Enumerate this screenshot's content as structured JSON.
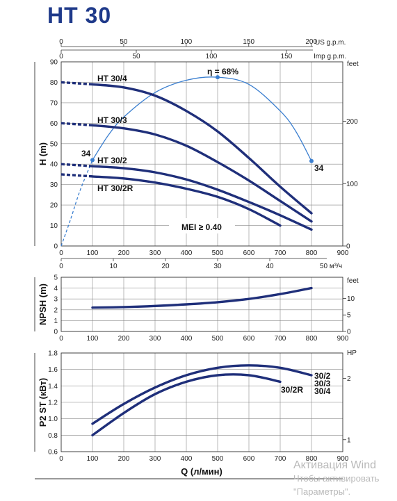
{
  "page": {
    "title": "HT 30",
    "activation": {
      "line1": "Активация Wind",
      "line2": "Чтобы активировать",
      "line3": "\"Параметры\"."
    }
  },
  "colors": {
    "pump_curve": "#1f2f7a",
    "efficiency": "#3b7fd0",
    "title": "#1f3a8a"
  },
  "chart_data": [
    {
      "id": "head",
      "type": "line",
      "ylabel": "H (m)",
      "xlim": [
        0,
        900
      ],
      "ylim": [
        0,
        90
      ],
      "x_ticks": [
        0,
        100,
        200,
        300,
        400,
        500,
        600,
        700,
        800,
        900
      ],
      "y_ticks": [
        0,
        10,
        20,
        30,
        40,
        50,
        60,
        70,
        80,
        90
      ],
      "top_axis_us": {
        "unit": "US g.p.m.",
        "ticks": [
          0,
          50,
          100,
          150,
          200
        ]
      },
      "top_axis_imp": {
        "unit": "Imp g.p.m.",
        "ticks": [
          0,
          50,
          100,
          150
        ]
      },
      "bottom_axis_m3h": {
        "unit": "50 м³/ч",
        "ticks": [
          0,
          10,
          20,
          30,
          40
        ]
      },
      "right_axis": {
        "unit": "feet",
        "ticks": [
          0,
          100,
          200
        ]
      },
      "series": [
        {
          "name": "HT 30/4",
          "x": [
            100,
            200,
            300,
            400,
            500,
            600,
            700,
            800
          ],
          "y": [
            79,
            77.5,
            73.5,
            66,
            56,
            43,
            29,
            16
          ],
          "extrapolated": {
            "x": [
              0,
              100
            ],
            "y": [
              80,
              79
            ]
          }
        },
        {
          "name": "HT 30/3",
          "x": [
            100,
            200,
            300,
            400,
            500,
            600,
            700,
            800
          ],
          "y": [
            59,
            57.5,
            54.5,
            49,
            41,
            32,
            22,
            12
          ],
          "extrapolated": {
            "x": [
              0,
              100
            ],
            "y": [
              60,
              59
            ]
          }
        },
        {
          "name": "HT 30/2",
          "x": [
            100,
            200,
            300,
            400,
            500,
            600,
            700,
            800
          ],
          "y": [
            39,
            38,
            36,
            32.5,
            27.5,
            21.5,
            15,
            8
          ],
          "extrapolated": {
            "x": [
              0,
              100
            ],
            "y": [
              40,
              39
            ]
          }
        },
        {
          "name": "HT 30/2R",
          "x": [
            100,
            200,
            300,
            400,
            500,
            600,
            700
          ],
          "y": [
            34,
            33,
            31,
            28,
            24,
            18,
            10
          ],
          "extrapolated": {
            "x": [
              0,
              100
            ],
            "y": [
              35,
              34
            ]
          }
        }
      ],
      "efficiency_curve": {
        "x": [
          100,
          150,
          200,
          300,
          400,
          500,
          600,
          700,
          750,
          800
        ],
        "y": [
          42,
          54,
          63,
          75,
          81,
          82.5,
          79,
          66,
          56,
          41.5
        ],
        "dashed": {
          "x": [
            0,
            30,
            60,
            100
          ],
          "y": [
            0,
            13,
            27,
            42
          ]
        }
      },
      "annotations": [
        {
          "text": "η = 68%",
          "x": 500,
          "y": 82.5
        },
        {
          "text": "34",
          "x": 100,
          "y": 42
        },
        {
          "text": "34",
          "x": 800,
          "y": 41.5
        },
        {
          "text": "MEI ≥ 0.40"
        }
      ]
    },
    {
      "id": "npsh",
      "type": "line",
      "ylabel": "NPSH (m)",
      "xlim": [
        0,
        900
      ],
      "ylim": [
        0,
        5
      ],
      "x_ticks": [
        0,
        100,
        200,
        300,
        400,
        500,
        600,
        700,
        800,
        900
      ],
      "y_ticks": [
        0,
        1,
        2,
        3,
        4,
        5
      ],
      "right_axis": {
        "unit": "feet",
        "ticks": [
          0,
          5,
          10
        ]
      },
      "series": [
        {
          "name": "NPSH",
          "x": [
            100,
            200,
            300,
            400,
            500,
            600,
            700,
            800
          ],
          "y": [
            2.2,
            2.25,
            2.35,
            2.5,
            2.7,
            3.0,
            3.45,
            4.0
          ]
        }
      ]
    },
    {
      "id": "power",
      "type": "line",
      "ylabel": "P2 ST (кВт)",
      "xlabel": "Q (л/мин)",
      "xlim": [
        0,
        900
      ],
      "ylim": [
        0.6,
        1.8
      ],
      "x_ticks": [
        0,
        100,
        200,
        300,
        400,
        500,
        600,
        700,
        800,
        900
      ],
      "y_ticks": [
        "0.6",
        "0.8",
        "1.0",
        "1.2",
        "1.4",
        "1.6",
        "1.8"
      ],
      "right_axis": {
        "unit": "HP",
        "ticks": [
          1,
          2
        ]
      },
      "series": [
        {
          "name": "30/2 30/3 30/4",
          "x": [
            100,
            200,
            300,
            400,
            500,
            600,
            700,
            800
          ],
          "y": [
            0.94,
            1.18,
            1.38,
            1.53,
            1.62,
            1.65,
            1.62,
            1.53
          ]
        },
        {
          "name": "30/2R",
          "x": [
            100,
            200,
            300,
            400,
            500,
            600,
            700
          ],
          "y": [
            0.8,
            1.07,
            1.3,
            1.45,
            1.53,
            1.53,
            1.45
          ]
        }
      ],
      "labels": [
        "30/2",
        "30/3",
        "30/4",
        "30/2R"
      ]
    }
  ]
}
